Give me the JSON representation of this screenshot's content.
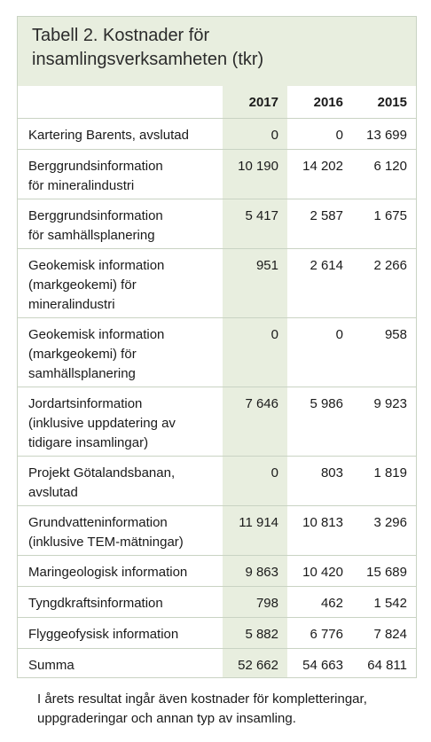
{
  "table": {
    "title_line1": "Tabell 2. Kostnader för",
    "title_line2": "insamlingsverksamheten (tkr)",
    "headers": [
      "2017",
      "2016",
      "2015"
    ],
    "rows": [
      {
        "label1": "Kartering Barents, avslutad",
        "label2": "",
        "label3": "",
        "v2017": "0",
        "v2016": "0",
        "v2015": "13 699"
      },
      {
        "label1": "Berggrundsinformation",
        "label2": "för mineralindustri",
        "label3": "",
        "v2017": "10 190",
        "v2016": "14 202",
        "v2015": "6 120"
      },
      {
        "label1": "Berggrundsinformation",
        "label2": "för samhällsplanering",
        "label3": "",
        "v2017": "5 417",
        "v2016": "2 587",
        "v2015": "1 675"
      },
      {
        "label1": "Geokemisk information",
        "label2": "(markgeokemi) för",
        "label3": "mineralindustri",
        "v2017": "951",
        "v2016": "2 614",
        "v2015": "2 266"
      },
      {
        "label1": "Geokemisk information",
        "label2": "(markgeokemi) för",
        "label3": "samhällsplanering",
        "v2017": "0",
        "v2016": "0",
        "v2015": "958"
      },
      {
        "label1": "Jordartsinformation",
        "label2": "(inklusive uppdatering av",
        "label3": "tidigare insamlingar)",
        "v2017": "7 646",
        "v2016": "5 986",
        "v2015": "9 923"
      },
      {
        "label1": "Projekt Götalandsbanan,",
        "label2": "avslutad",
        "label3": "",
        "v2017": "0",
        "v2016": "803",
        "v2015": "1 819"
      },
      {
        "label1": "Grundvatteninformation",
        "label2": "(inklusive TEM-mätningar)",
        "label3": "",
        "v2017": "11 914",
        "v2016": "10 813",
        "v2015": "3 296"
      },
      {
        "label1": "Maringeologisk information",
        "label2": "",
        "label3": "",
        "v2017": "9 863",
        "v2016": "10 420",
        "v2015": "15 689"
      },
      {
        "label1": "Tyngdkraftsinformation",
        "label2": "",
        "label3": "",
        "v2017": "798",
        "v2016": "462",
        "v2015": "1 542"
      },
      {
        "label1": "Flyggeofysisk information",
        "label2": "",
        "label3": "",
        "v2017": "5 882",
        "v2016": "6 776",
        "v2015": "7 824"
      },
      {
        "label1": "Summa",
        "label2": "",
        "label3": "",
        "v2017": "52 662",
        "v2016": "54 663",
        "v2015": "64 811"
      }
    ]
  },
  "note": {
    "line1": "I årets resultat ingår även kostnader för kompletteringar,",
    "line2": "uppgraderingar och annan typ av insamling."
  }
}
